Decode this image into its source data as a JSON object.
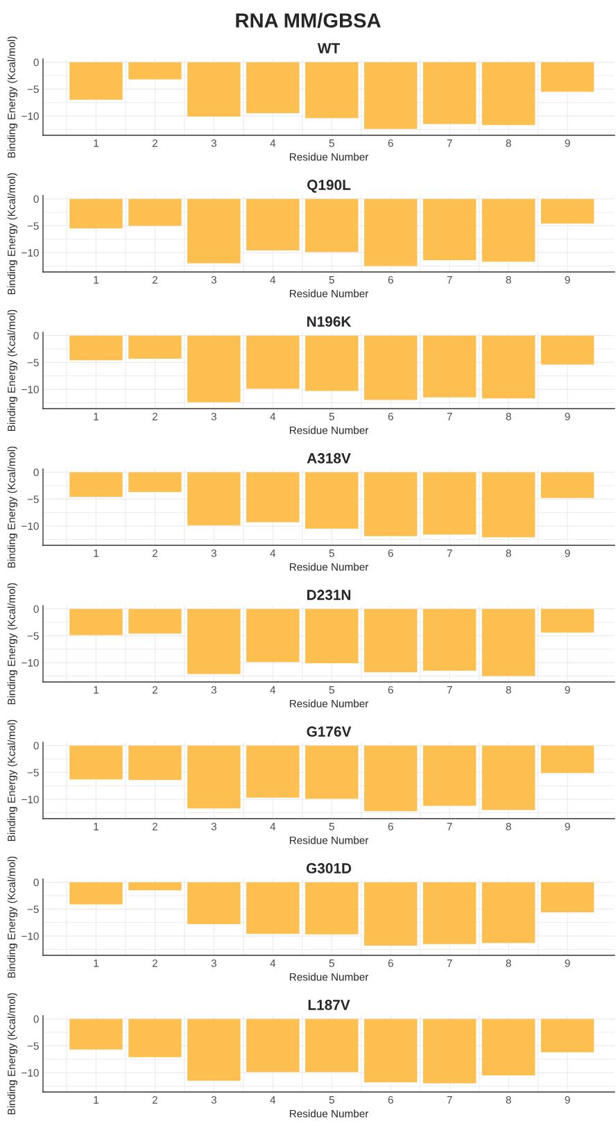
{
  "chart_data": [
    {
      "type": "bar",
      "title": "WT",
      "annotations": [
        "RNA MM/GBSA"
      ],
      "xlabel": "Residue Number",
      "ylabel": "Binding Energy (Kcal/mol)",
      "x": [
        1,
        2,
        3,
        4,
        5,
        6,
        7,
        8,
        9
      ],
      "values": [
        -7.0,
        -3.2,
        -10.1,
        -9.5,
        -10.4,
        -12.4,
        -11.5,
        -11.7,
        -5.5
      ],
      "color": "#fdbf50",
      "xlim": [
        0.1,
        9.8
      ],
      "ylim": [
        -13.6,
        0.6
      ],
      "xticks": [
        1,
        2,
        3,
        4,
        5,
        6,
        7,
        8,
        9
      ],
      "yticks": [
        -10,
        -5,
        0
      ],
      "grid": true
    },
    {
      "type": "bar",
      "title": "Q190L",
      "xlabel": "Residue Number",
      "ylabel": "Binding Energy (Kcal/mol)",
      "x": [
        1,
        2,
        3,
        4,
        5,
        6,
        7,
        8,
        9
      ],
      "values": [
        -5.5,
        -5.0,
        -12.0,
        -9.6,
        -9.9,
        -12.5,
        -11.4,
        -11.7,
        -4.6
      ],
      "color": "#fdbf50",
      "xlim": [
        0.1,
        9.8
      ],
      "ylim": [
        -13.6,
        0.6
      ],
      "xticks": [
        1,
        2,
        3,
        4,
        5,
        6,
        7,
        8,
        9
      ],
      "yticks": [
        -10,
        -5,
        0
      ],
      "grid": true
    },
    {
      "type": "bar",
      "title": "N196K",
      "xlabel": "Residue Number",
      "ylabel": "Binding Energy (Kcal/mol)",
      "x": [
        1,
        2,
        3,
        4,
        5,
        6,
        7,
        8,
        9
      ],
      "values": [
        -4.6,
        -4.3,
        -12.4,
        -9.9,
        -10.3,
        -12.0,
        -11.5,
        -11.7,
        -5.4
      ],
      "color": "#fdbf50",
      "xlim": [
        0.1,
        9.8
      ],
      "ylim": [
        -13.6,
        0.6
      ],
      "xticks": [
        1,
        2,
        3,
        4,
        5,
        6,
        7,
        8,
        9
      ],
      "yticks": [
        -10,
        -5,
        0
      ],
      "grid": true
    },
    {
      "type": "bar",
      "title": "A318V",
      "xlabel": "Residue Number",
      "ylabel": "Binding Energy (Kcal/mol)",
      "x": [
        1,
        2,
        3,
        4,
        5,
        6,
        7,
        8,
        9
      ],
      "values": [
        -4.6,
        -3.7,
        -9.9,
        -9.3,
        -10.5,
        -11.9,
        -11.6,
        -12.1,
        -4.8
      ],
      "color": "#fdbf50",
      "xlim": [
        0.1,
        9.8
      ],
      "ylim": [
        -13.6,
        0.6
      ],
      "xticks": [
        1,
        2,
        3,
        4,
        5,
        6,
        7,
        8,
        9
      ],
      "yticks": [
        -10,
        -5,
        0
      ],
      "grid": true
    },
    {
      "type": "bar",
      "title": "D231N",
      "xlabel": "Residue Number",
      "ylabel": "Binding Energy (Kcal/mol)",
      "x": [
        1,
        2,
        3,
        4,
        5,
        6,
        7,
        8,
        9
      ],
      "values": [
        -4.9,
        -4.6,
        -12.1,
        -9.9,
        -10.1,
        -11.8,
        -11.5,
        -12.5,
        -4.4
      ],
      "color": "#fdbf50",
      "xlim": [
        0.1,
        9.8
      ],
      "ylim": [
        -13.6,
        0.6
      ],
      "xticks": [
        1,
        2,
        3,
        4,
        5,
        6,
        7,
        8,
        9
      ],
      "yticks": [
        -10,
        -5,
        0
      ],
      "grid": true
    },
    {
      "type": "bar",
      "title": "G176V",
      "xlabel": "Residue Number",
      "ylabel": "Binding Energy (Kcal/mol)",
      "x": [
        1,
        2,
        3,
        4,
        5,
        6,
        7,
        8,
        9
      ],
      "values": [
        -6.3,
        -6.4,
        -11.7,
        -9.7,
        -9.9,
        -12.2,
        -11.2,
        -12.0,
        -5.1
      ],
      "color": "#fdbf50",
      "xlim": [
        0.1,
        9.8
      ],
      "ylim": [
        -13.6,
        0.6
      ],
      "xticks": [
        1,
        2,
        3,
        4,
        5,
        6,
        7,
        8,
        9
      ],
      "yticks": [
        -10,
        -5,
        0
      ],
      "grid": true
    },
    {
      "type": "bar",
      "title": "G301D",
      "xlabel": "Residue Number",
      "ylabel": "Binding Energy (Kcal/mol)",
      "x": [
        1,
        2,
        3,
        4,
        5,
        6,
        7,
        8,
        9
      ],
      "values": [
        -4.1,
        -1.5,
        -7.8,
        -9.6,
        -9.7,
        -11.8,
        -11.5,
        -11.3,
        -5.6
      ],
      "color": "#fdbf50",
      "xlim": [
        0.1,
        9.8
      ],
      "ylim": [
        -13.6,
        0.6
      ],
      "xticks": [
        1,
        2,
        3,
        4,
        5,
        6,
        7,
        8,
        9
      ],
      "yticks": [
        -10,
        -5,
        0
      ],
      "grid": true
    },
    {
      "type": "bar",
      "title": "L187V",
      "xlabel": "Residue Number",
      "ylabel": "Binding Energy (Kcal/mol)",
      "x": [
        1,
        2,
        3,
        4,
        5,
        6,
        7,
        8,
        9
      ],
      "values": [
        -5.7,
        -7.1,
        -11.5,
        -9.9,
        -9.9,
        -11.8,
        -12.0,
        -10.5,
        -6.2
      ],
      "color": "#fdbf50",
      "xlim": [
        0.1,
        9.8
      ],
      "ylim": [
        -13.6,
        0.6
      ],
      "xticks": [
        1,
        2,
        3,
        4,
        5,
        6,
        7,
        8,
        9
      ],
      "yticks": [
        -10,
        -5,
        0
      ],
      "grid": true
    }
  ]
}
